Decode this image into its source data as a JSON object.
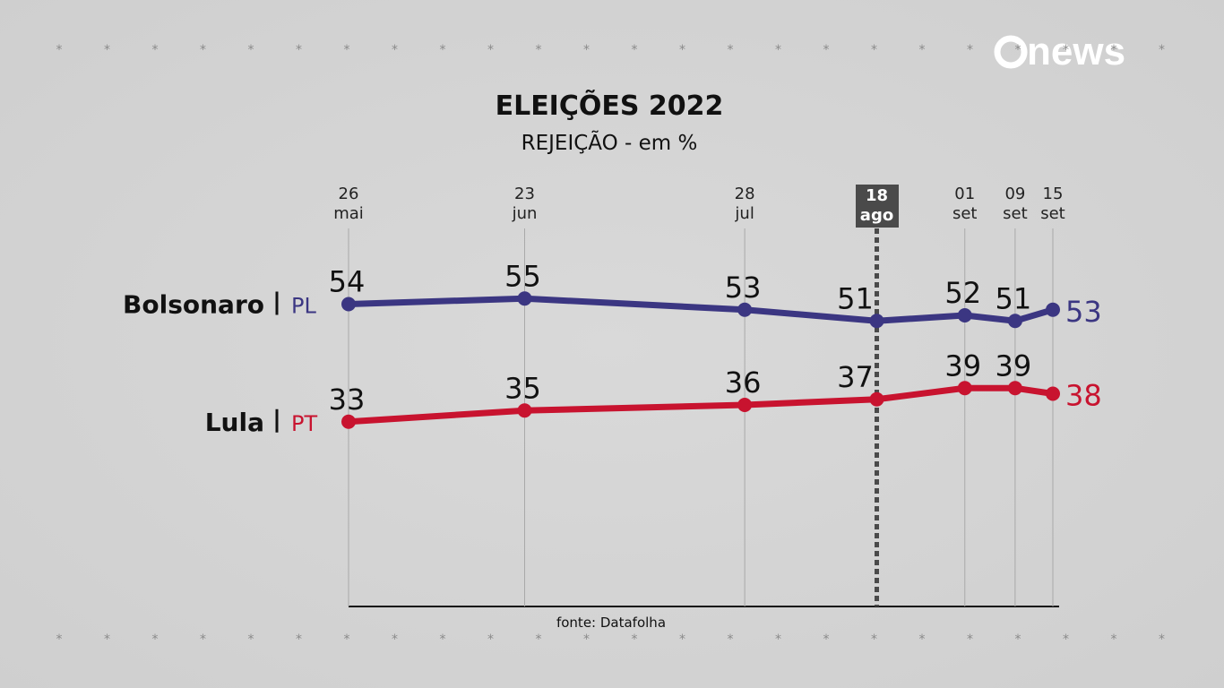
{
  "brand": "news",
  "chart_data": {
    "type": "line",
    "title": "ELEIÇÕES 2022",
    "subtitle": "REJEIÇÃO - em %",
    "source": "fonte: Datafolha",
    "x": [
      "26 mai",
      "23 jun",
      "28 jul",
      "18 ago",
      "01 set",
      "09 set",
      "15 set"
    ],
    "highlight": "18 ago",
    "series": [
      {
        "name": "Bolsonaro",
        "party": "PL",
        "color": "#3b3682",
        "values": [
          54,
          55,
          53,
          51,
          52,
          51,
          53
        ]
      },
      {
        "name": "Lula",
        "party": "PT",
        "color": "#c8132f",
        "values": [
          33,
          35,
          36,
          37,
          39,
          39,
          38
        ]
      }
    ],
    "grid": true
  }
}
